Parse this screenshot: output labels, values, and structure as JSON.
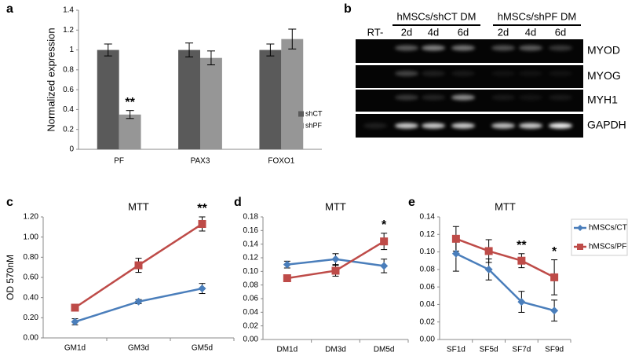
{
  "chart_data": [
    {
      "panel": "a",
      "type": "bar",
      "ylabel": "Normalized expression",
      "categories": [
        "PF",
        "PAX3",
        "FOXO1"
      ],
      "series": [
        {
          "name": "shCT",
          "color": "#5a5a5a",
          "values": [
            1,
            1,
            1
          ],
          "errors": [
            0.06,
            0.07,
            0.06
          ]
        },
        {
          "name": "shPF",
          "color": "#969696",
          "values": [
            0.35,
            0.92,
            1.11
          ],
          "errors": [
            0.04,
            0.07,
            0.1
          ]
        }
      ],
      "ylim": [
        0,
        1.4
      ],
      "yticks": [
        0,
        0.2,
        0.4,
        0.6,
        0.8,
        1,
        1.2,
        1.4
      ],
      "grid": false,
      "legend": "right",
      "annotations": [
        {
          "text": "**",
          "x": "PF",
          "series": "shPF"
        }
      ]
    },
    {
      "panel": "c",
      "type": "line",
      "title": "MTT",
      "ylabel": "OD 570nM",
      "categories": [
        "GM1d",
        "GM3d",
        "GM5d"
      ],
      "series": [
        {
          "color": "#4a7ebb",
          "marker": "diamond",
          "values": [
            0.16,
            0.36,
            0.49
          ],
          "errors": [
            0.03,
            0.02,
            0.05
          ]
        },
        {
          "color": "#be4b48",
          "marker": "square",
          "values": [
            0.3,
            0.72,
            1.13
          ],
          "errors": [
            0.02,
            0.07,
            0.07
          ]
        }
      ],
      "ylim": [
        0,
        1.2
      ],
      "yticks": [
        {
          "value": 0,
          "label": "0.00"
        },
        {
          "value": 0.2,
          "label": "0.20"
        },
        {
          "value": 0.4,
          "label": "0.40"
        },
        {
          "value": 0.6,
          "label": "0.60"
        },
        {
          "value": 0.8,
          "label": "0.80"
        },
        {
          "value": 1,
          "label": "1.00"
        },
        {
          "value": 1.2,
          "label": "1.20"
        }
      ],
      "grid": false,
      "legend": false,
      "annotations": [
        {
          "text": "**",
          "x": "GM5d"
        }
      ]
    },
    {
      "panel": "d",
      "type": "line",
      "title": "MTT",
      "categories": [
        "DM1d",
        "DM3d",
        "DM5d"
      ],
      "series": [
        {
          "color": "#4a7ebb",
          "marker": "diamond",
          "values": [
            0.11,
            0.118,
            0.108
          ],
          "errors": [
            0.005,
            0.008,
            0.01
          ]
        },
        {
          "color": "#be4b48",
          "marker": "square",
          "values": [
            0.09,
            0.101,
            0.144
          ],
          "errors": [
            0.005,
            0.008,
            0.012
          ]
        }
      ],
      "ylim": [
        0,
        0.18
      ],
      "yticks": [
        {
          "value": 0,
          "label": "0.00"
        },
        {
          "value": 0.02,
          "label": "0.02"
        },
        {
          "value": 0.04,
          "label": "0.04"
        },
        {
          "value": 0.06,
          "label": "0.06"
        },
        {
          "value": 0.08,
          "label": "0.08"
        },
        {
          "value": 0.1,
          "label": "0.10"
        },
        {
          "value": 0.12,
          "label": "0.12"
        },
        {
          "value": 0.14,
          "label": "0.14"
        },
        {
          "value": 0.16,
          "label": "0.16"
        },
        {
          "value": 0.18,
          "label": "0.18"
        }
      ],
      "grid": false,
      "legend": false,
      "annotations": [
        {
          "text": "*",
          "x": "DM5d"
        }
      ]
    },
    {
      "panel": "e",
      "type": "line",
      "title": "MTT",
      "categories": [
        "SF1d",
        "SF5d",
        "SF7d",
        "SF9d"
      ],
      "series": [
        {
          "name": "hMSCs/CT",
          "color": "#4a7ebb",
          "marker": "diamond",
          "values": [
            0.098,
            0.08,
            0.043,
            0.033
          ],
          "errors": [
            0.02,
            0.012,
            0.012,
            0.012
          ]
        },
        {
          "name": "hMSCs/PF",
          "color": "#be4b48",
          "marker": "square",
          "values": [
            0.115,
            0.101,
            0.09,
            0.071
          ],
          "errors": [
            0.014,
            0.013,
            0.008,
            0.02
          ]
        }
      ],
      "ylim": [
        0,
        0.14
      ],
      "yticks": [
        {
          "value": 0,
          "label": "0.00"
        },
        {
          "value": 0.02,
          "label": "0.02"
        },
        {
          "value": 0.04,
          "label": "0.04"
        },
        {
          "value": 0.06,
          "label": "0.06"
        },
        {
          "value": 0.08,
          "label": "0.08"
        },
        {
          "value": 0.1,
          "label": "0.10"
        },
        {
          "value": 0.12,
          "label": "0.12"
        },
        {
          "value": 0.14,
          "label": "0.14"
        }
      ],
      "grid": false,
      "legend": "top-right",
      "annotations": [
        {
          "text": "**",
          "x": "SF7d"
        },
        {
          "text": "*",
          "x": "SF9d"
        }
      ]
    }
  ],
  "gel": {
    "panel": "b",
    "groups": [
      "hMSCs/shCT DM",
      "hMSCs/shPF DM"
    ],
    "lanes": [
      "RT-",
      "2d",
      "4d",
      "6d",
      "2d",
      "4d",
      "6d"
    ],
    "rows": [
      "MYOD",
      "MYOG",
      "MYH1",
      "GAPDH"
    ]
  }
}
